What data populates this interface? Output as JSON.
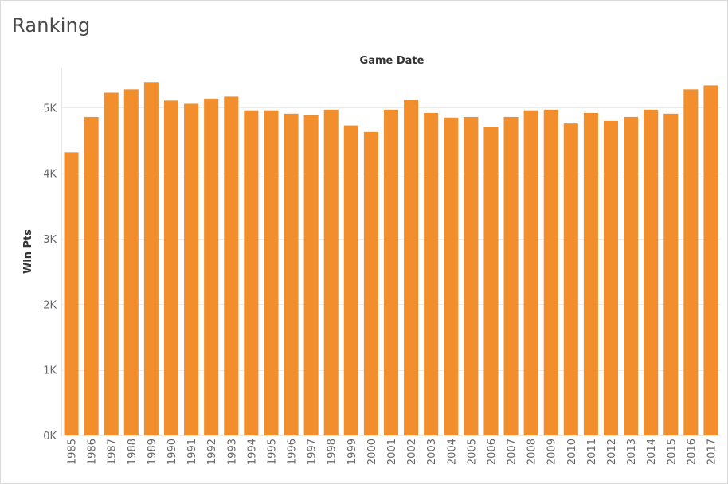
{
  "title": "Ranking",
  "chart_data": {
    "type": "bar",
    "title": "Ranking",
    "xlabel": "Game Date",
    "ylabel": "Win Pts",
    "ylim": [
      0,
      5600
    ],
    "yticks": [
      0,
      1000,
      2000,
      3000,
      4000,
      5000
    ],
    "ytick_labels": [
      "0K",
      "1K",
      "2K",
      "3K",
      "4K",
      "5K"
    ],
    "grid": "horizontal",
    "bar_color": "#f28e2b",
    "categories": [
      "1985",
      "1986",
      "1987",
      "1988",
      "1989",
      "1990",
      "1991",
      "1992",
      "1993",
      "1994",
      "1995",
      "1996",
      "1997",
      "1998",
      "1999",
      "2000",
      "2001",
      "2002",
      "2003",
      "2004",
      "2005",
      "2006",
      "2007",
      "2008",
      "2009",
      "2010",
      "2011",
      "2012",
      "2013",
      "2014",
      "2015",
      "2016",
      "2017"
    ],
    "values": [
      4320,
      4860,
      5230,
      5280,
      5390,
      5110,
      5060,
      5140,
      5170,
      4960,
      4960,
      4910,
      4890,
      4970,
      4730,
      4630,
      4970,
      5120,
      4920,
      4850,
      4860,
      4710,
      4860,
      4960,
      4970,
      4760,
      4920,
      4800,
      4860,
      4970,
      4910,
      5280,
      5340
    ]
  }
}
